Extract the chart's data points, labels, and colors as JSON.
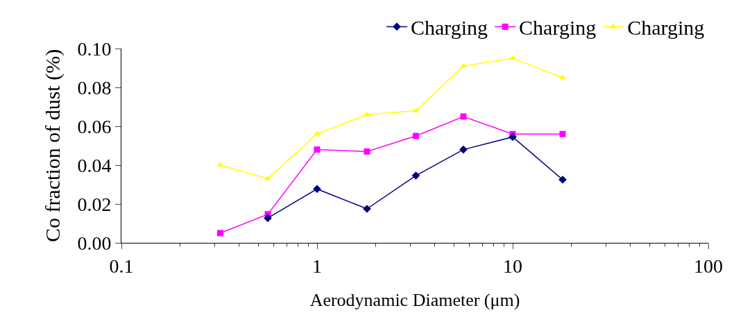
{
  "chart_data": {
    "type": "line",
    "xlabel": "Aerodynamic Diameter (μm)",
    "ylabel": "Co fraction of dust (%)",
    "log": "x",
    "grid": false,
    "legend": "top right",
    "x": [
      0.32,
      0.56,
      1,
      1.8,
      3.2,
      5.6,
      10,
      18
    ],
    "xlim": [
      0.1,
      100
    ],
    "xticks": [
      0.1,
      1,
      10,
      100
    ],
    "ylim": [
      0,
      0.1
    ],
    "yticks": [
      {
        "value": 0,
        "label": "0.00"
      },
      {
        "value": 0.02,
        "label": "0.02"
      },
      {
        "value": 0.04,
        "label": "0.04"
      },
      {
        "value": 0.06,
        "label": "0.06"
      },
      {
        "value": 0.08,
        "label": "0.08"
      },
      {
        "value": 0.1,
        "label": "0.10"
      }
    ],
    "series": [
      {
        "name": "Charging",
        "color": "#000080",
        "marker": "diamond",
        "values": [
          null,
          0.0127,
          0.0277,
          0.0175,
          0.0346,
          0.048,
          0.0545,
          0.0325
        ]
      },
      {
        "name": "Charging",
        "color": "#ff00ff",
        "marker": "square",
        "values": [
          0.005,
          0.0147,
          0.048,
          0.047,
          0.055,
          0.065,
          0.056,
          0.056
        ]
      },
      {
        "name": "Charging",
        "color": "#ffff00",
        "marker": "triangle",
        "values": [
          0.04,
          0.033,
          0.056,
          0.066,
          0.068,
          0.091,
          0.095,
          0.085
        ]
      }
    ]
  }
}
